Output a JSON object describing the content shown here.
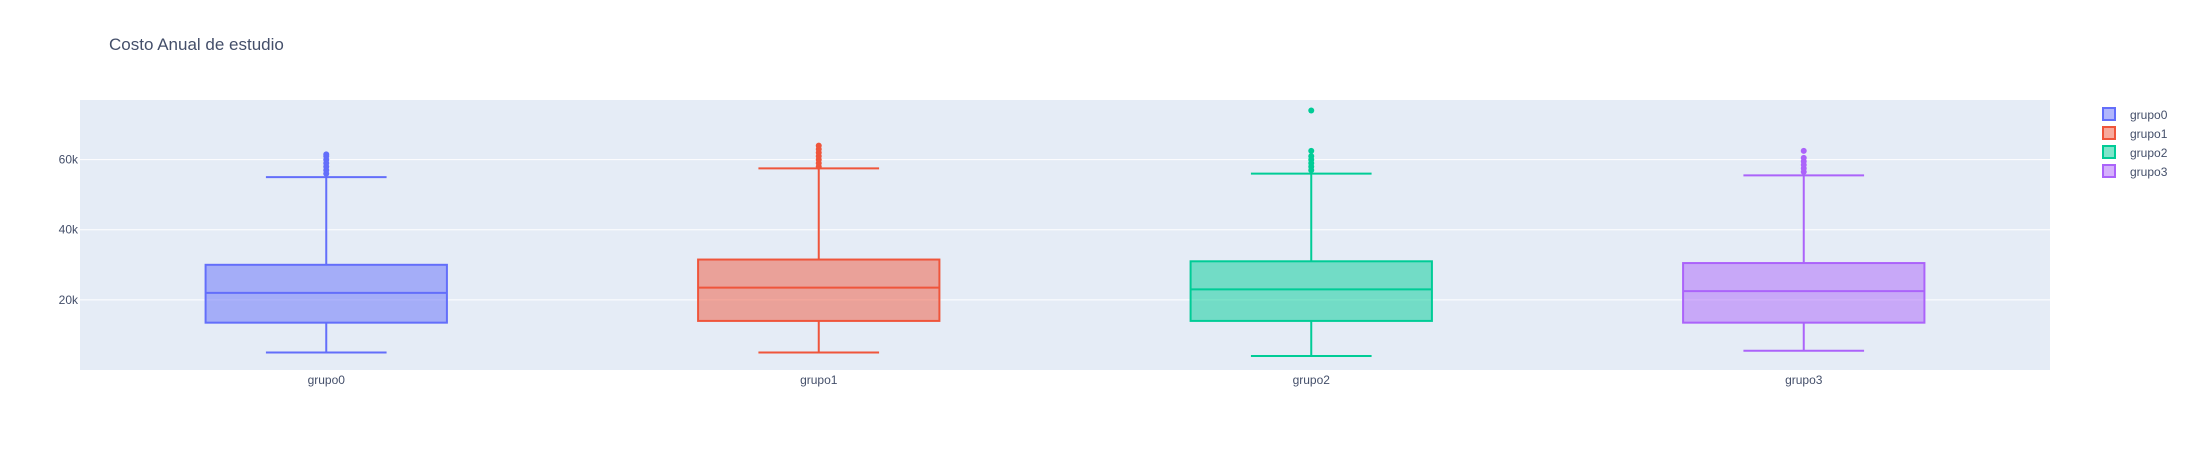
{
  "chart_data": {
    "type": "box",
    "title": "Costo Anual de estudio",
    "xlabel": "",
    "ylabel": "",
    "ylim": [
      0,
      77000
    ],
    "yticks": [
      20000,
      40000,
      60000
    ],
    "ytick_labels": [
      "20k",
      "40k",
      "60k"
    ],
    "grid": true,
    "legend_position": "top-right",
    "categories": [
      "grupo0",
      "grupo1",
      "grupo2",
      "grupo3"
    ],
    "series": [
      {
        "name": "grupo0",
        "color": "#636efa",
        "whisker_low": 5000,
        "q1": 13500,
        "median": 22000,
        "q3": 30000,
        "whisker_high": 55000,
        "outliers": [
          56000,
          57000,
          58000,
          59000,
          60000,
          61000,
          61500
        ]
      },
      {
        "name": "grupo1",
        "color": "#ef553b",
        "whisker_low": 5000,
        "q1": 14000,
        "median": 23500,
        "q3": 31500,
        "whisker_high": 57500,
        "outliers": [
          58000,
          59000,
          60000,
          61000,
          62000,
          63000,
          64000
        ]
      },
      {
        "name": "grupo2",
        "color": "#00cc96",
        "whisker_low": 4000,
        "q1": 14000,
        "median": 23000,
        "q3": 31000,
        "whisker_high": 56000,
        "outliers": [
          57000,
          58000,
          59000,
          60000,
          61000,
          62500,
          74000
        ]
      },
      {
        "name": "grupo3",
        "color": "#ab63fa",
        "whisker_low": 5500,
        "q1": 13500,
        "median": 22500,
        "q3": 30500,
        "whisker_high": 55500,
        "outliers": [
          56500,
          57500,
          58500,
          59500,
          60500,
          62500
        ]
      }
    ]
  }
}
